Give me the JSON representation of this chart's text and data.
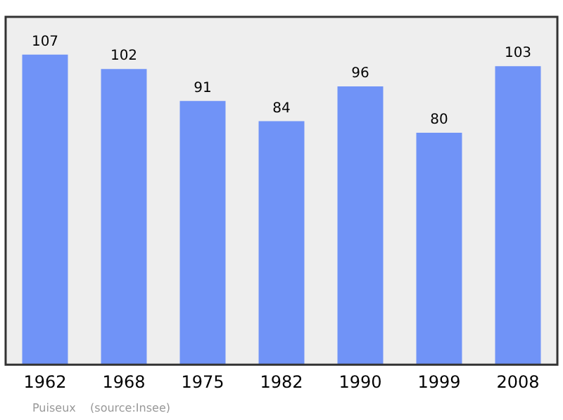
{
  "chart_data": {
    "type": "bar",
    "categories": [
      "1962",
      "1968",
      "1975",
      "1982",
      "1990",
      "1999",
      "2008"
    ],
    "values": [
      107,
      102,
      91,
      84,
      96,
      80,
      103
    ],
    "color": "#7093f7",
    "data_labels": true,
    "legend": false,
    "annotations": [
      "Puiseux    (source:Insee)"
    ]
  }
}
